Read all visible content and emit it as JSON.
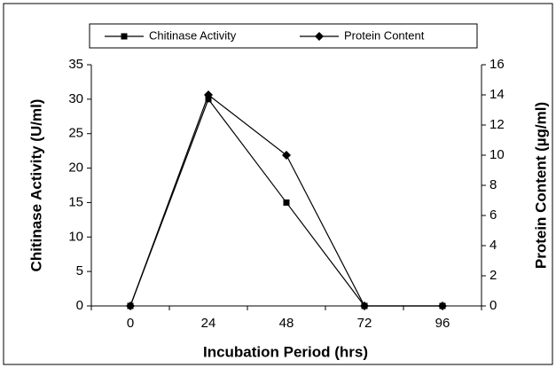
{
  "chart_data": {
    "type": "line",
    "categories": [
      "0",
      "24",
      "48",
      "72",
      "96"
    ],
    "xlabel": "Incubation Period (hrs)",
    "ylabel": "Chitinase Activity (U/ml)",
    "y2label": "Protein Content (µg/ml)",
    "series": [
      {
        "name": "Chitinase Activity",
        "color": "#000000",
        "marker": "square",
        "values": [
          0,
          30,
          15,
          0,
          0
        ]
      },
      {
        "name": "Protein Content",
        "color": "#000000",
        "marker": "diamond",
        "axis": "y2",
        "values": [
          0,
          14,
          10,
          0,
          0
        ]
      }
    ],
    "ylim": [
      0,
      35
    ],
    "yticks": [
      0,
      5,
      10,
      15,
      20,
      25,
      30,
      35
    ],
    "y2lim": [
      0,
      16
    ],
    "y2ticks": [
      0,
      2,
      4,
      6,
      8,
      10,
      12,
      14,
      16
    ],
    "legend": "top"
  }
}
